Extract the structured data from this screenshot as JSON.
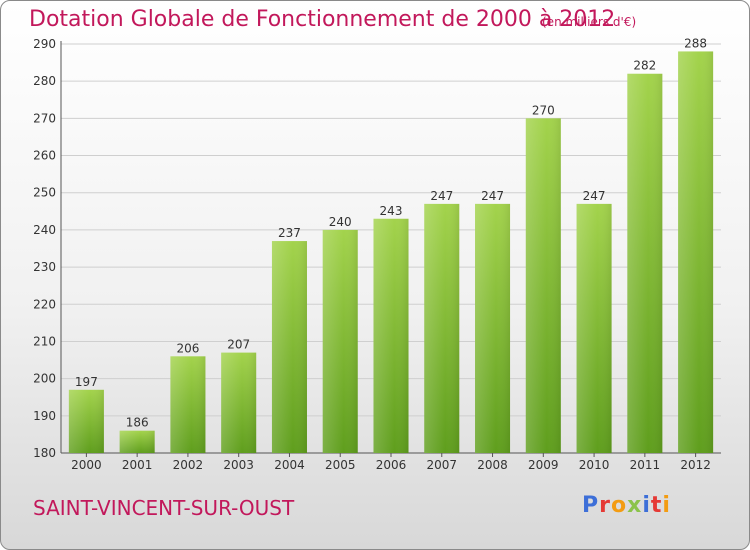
{
  "title": "Dotation Globale de Fonctionnement de 2000 à 2012",
  "subtitle": "(en milliers d'€)",
  "commune": "SAINT-VINCENT-SUR-OUST",
  "logo": {
    "text": "Proxiti",
    "colors": [
      "#3d6fd8",
      "#e53935",
      "#f39c12",
      "#8bc34a",
      "#3d6fd8",
      "#e53935",
      "#f39c12"
    ]
  },
  "colors": {
    "bar_top": "#a3d34c",
    "bar_bottom": "#5f9e1d",
    "grid": "#cfcfcf",
    "text": "#c2185b",
    "tick": "#333333"
  },
  "chart_data": {
    "type": "bar",
    "title": "Dotation Globale de Fonctionnement de 2000 à 2012",
    "categories": [
      "2000",
      "2001",
      "2002",
      "2003",
      "2004",
      "2005",
      "2006",
      "2007",
      "2008",
      "2009",
      "2010",
      "2011",
      "2012"
    ],
    "values": [
      197,
      186,
      206,
      207,
      237,
      240,
      243,
      247,
      247,
      270,
      247,
      282,
      288
    ],
    "ylim": [
      180,
      290
    ],
    "yticks": [
      180,
      190,
      200,
      210,
      220,
      230,
      240,
      250,
      260,
      270,
      280,
      290
    ],
    "grid": true,
    "xlabel": "",
    "ylabel": ""
  }
}
